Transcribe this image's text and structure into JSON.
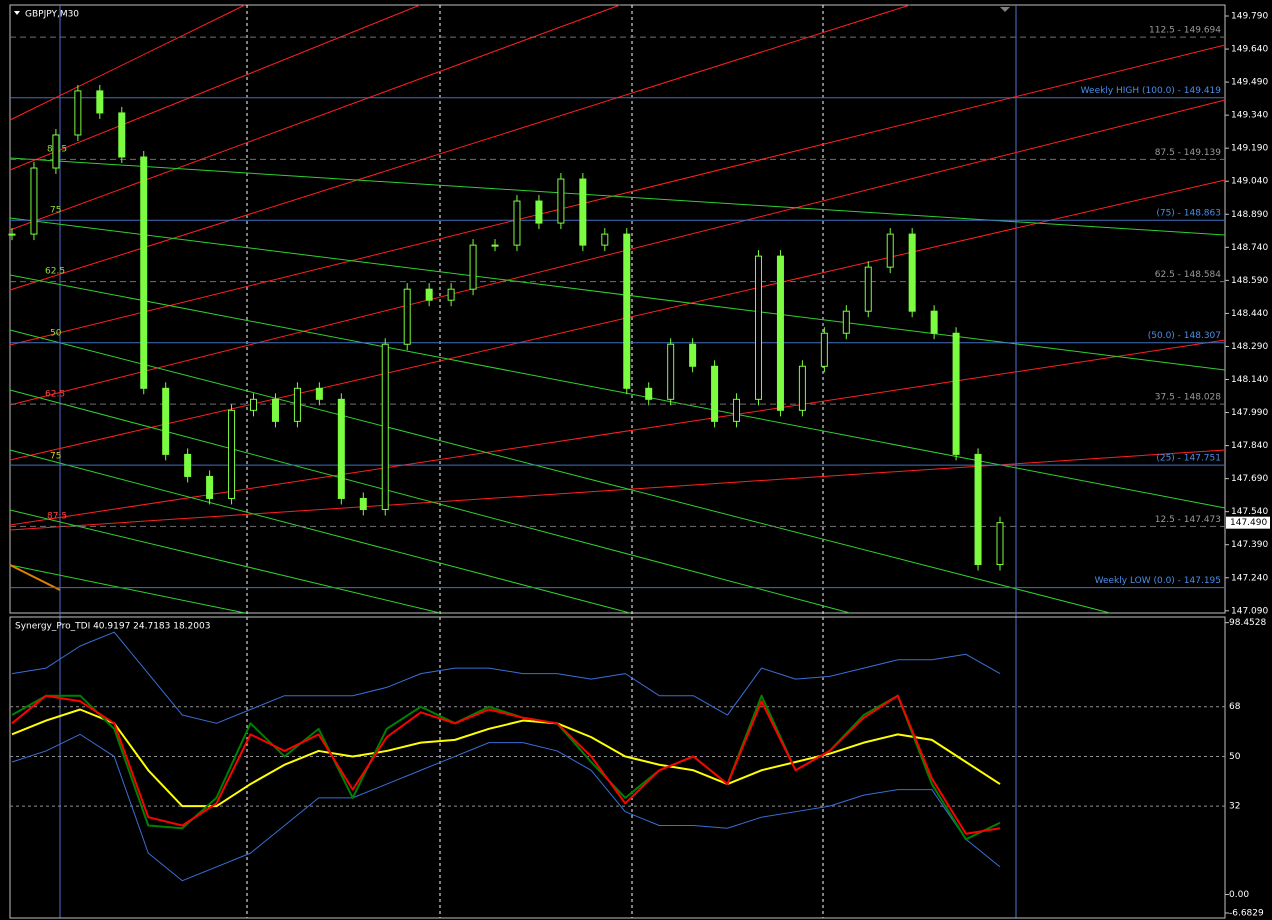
{
  "window": {
    "symbol": "GBPJPY,M30"
  },
  "price_pane": {
    "lim": [
      147.08,
      149.84
    ],
    "ticks": [
      {
        "value": 149.79,
        "label": "149.790"
      },
      {
        "value": 149.64,
        "label": "149.640"
      },
      {
        "value": 149.49,
        "label": "149.490"
      },
      {
        "value": 149.34,
        "label": "149.340"
      },
      {
        "value": 149.19,
        "label": "149.190"
      },
      {
        "value": 149.04,
        "label": "149.040"
      },
      {
        "value": 148.89,
        "label": "148.890"
      },
      {
        "value": 148.74,
        "label": "148.740"
      },
      {
        "value": 148.59,
        "label": "148.590"
      },
      {
        "value": 148.44,
        "label": "148.440"
      },
      {
        "value": 148.29,
        "label": "148.290"
      },
      {
        "value": 148.14,
        "label": "148.140"
      },
      {
        "value": 147.99,
        "label": "147.990"
      },
      {
        "value": 147.84,
        "label": "147.840"
      },
      {
        "value": 147.69,
        "label": "147.690"
      },
      {
        "value": 147.54,
        "label": "147.540"
      },
      {
        "value": 147.39,
        "label": "147.390"
      },
      {
        "value": 147.24,
        "label": "147.240"
      },
      {
        "value": 147.09,
        "label": "147.090"
      }
    ],
    "current_price": {
      "value": 147.49,
      "label": "147.490"
    },
    "fib_levels": [
      {
        "value": 149.694,
        "label": "112.5 - 149.694"
      },
      {
        "value": 149.419,
        "label": "Weekly HIGH (100.0) - 149.419"
      },
      {
        "value": 149.139,
        "label": "87.5 - 149.139"
      },
      {
        "value": 148.863,
        "label": "(75) - 148.863"
      },
      {
        "value": 148.584,
        "label": "62.5 - 148.584"
      },
      {
        "value": 148.307,
        "label": "(50.0) - 148.307"
      },
      {
        "value": 148.028,
        "label": "37.5 - 148.028"
      },
      {
        "value": 147.751,
        "label": "(25) - 147.751"
      },
      {
        "value": 147.473,
        "label": "12.5 - 147.473"
      },
      {
        "value": 147.195,
        "label": "Weekly LOW (0.0) - 147.195"
      }
    ],
    "channel_labels": [
      "87.5",
      "75",
      "62.5",
      "50",
      "62.5",
      "75",
      "87.5"
    ],
    "closes": [
      148.8,
      149.1,
      149.25,
      149.45,
      149.35,
      149.15,
      148.1,
      147.8,
      147.7,
      147.6,
      148.0,
      148.05,
      147.95,
      148.1,
      148.05,
      147.6,
      147.55,
      148.3,
      148.55,
      148.5,
      148.55,
      148.75,
      148.75,
      148.95,
      148.85,
      149.05,
      148.75,
      148.8,
      148.1,
      148.05,
      148.3,
      148.2,
      147.95,
      148.05,
      148.7,
      148.0,
      148.2,
      148.35,
      148.45,
      148.65,
      148.8,
      148.45,
      148.35,
      147.8,
      147.3,
      147.49
    ]
  },
  "indicator_pane": {
    "label": "Synergy_Pro_TDI 40.9197 24.7183 18.2003",
    "lim": [
      -8.5,
      100.5
    ],
    "ticks": [
      98.4528,
      68,
      50,
      32,
      {
        "value": 0,
        "label": "0.00"
      },
      -6.6829
    ],
    "series": [
      {
        "color": "#3a6fd8",
        "values": [
          80,
          82,
          90,
          95,
          80,
          65,
          62,
          67,
          72,
          72,
          72,
          75,
          80,
          82,
          82,
          80,
          80,
          78,
          80,
          72,
          72,
          65,
          82,
          78,
          79,
          82,
          85,
          85,
          87,
          80
        ]
      },
      {
        "color": "#3a6fd8",
        "values": [
          48,
          52,
          58,
          50,
          15,
          5,
          10,
          15,
          25,
          35,
          35,
          40,
          45,
          50,
          55,
          55,
          52,
          45,
          30,
          25,
          25,
          24,
          28,
          30,
          32,
          36,
          38,
          38,
          20,
          10
        ]
      },
      {
        "color": "#ffff00",
        "values": [
          58,
          63,
          67,
          62,
          45,
          32,
          32,
          40,
          47,
          52,
          50,
          52,
          55,
          56,
          60,
          63,
          62,
          57,
          50,
          47,
          45,
          40,
          45,
          48,
          51,
          55,
          58,
          56,
          48,
          40
        ]
      },
      {
        "color": "#008000",
        "values": [
          65,
          72,
          72,
          60,
          25,
          24,
          35,
          62,
          50,
          60,
          35,
          60,
          68,
          62,
          68,
          64,
          62,
          48,
          35,
          45,
          50,
          40,
          72,
          45,
          52,
          65,
          72,
          40,
          20,
          26
        ]
      },
      {
        "color": "#ff0000",
        "values": [
          62,
          72,
          70,
          62,
          28,
          25,
          33,
          58,
          52,
          58,
          38,
          57,
          66,
          62,
          67,
          64,
          62,
          50,
          33,
          45,
          50,
          40,
          70,
          45,
          52,
          64,
          72,
          42,
          22,
          24
        ]
      }
    ]
  }
}
